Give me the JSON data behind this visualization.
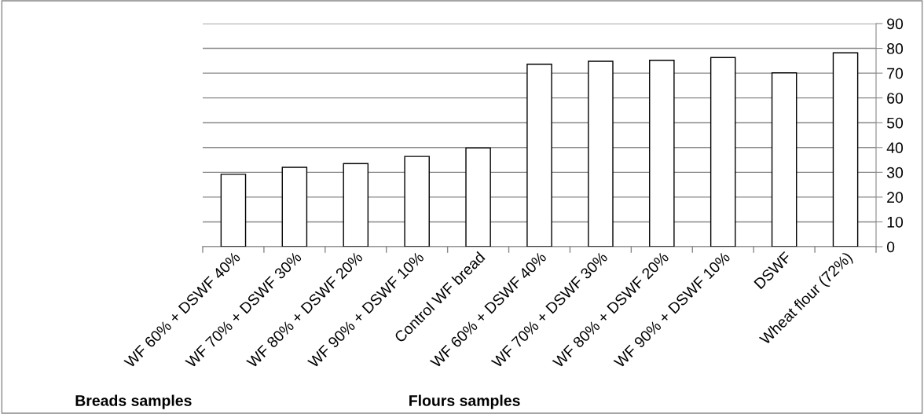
{
  "chart_data": {
    "type": "bar",
    "categories": [
      "WF 60% + DSWF 40%",
      "WF 70% + DSWF 30%",
      "WF 80% + DSWF 20%",
      "WF 90% + DSWF 10%",
      "Control WF bread",
      "WF 60% + DSWF 40%",
      "WF 70% + DSWF 30%",
      "WF 80% + DSWF 20%",
      "WF 90% + DSWF 10%",
      "DSWF",
      "Wheat flour (72%)"
    ],
    "values": [
      29.2,
      32,
      33.5,
      36.4,
      39.8,
      73.6,
      74.8,
      75.2,
      76.3,
      70.1,
      78.2
    ],
    "color": "#ffffff",
    "ylim": [
      0,
      90
    ],
    "yticks": [
      0,
      10,
      20,
      30,
      40,
      50,
      60,
      70,
      80,
      90
    ],
    "grid": "y",
    "annotations": [
      "Breads samples",
      "Flours samples"
    ]
  }
}
